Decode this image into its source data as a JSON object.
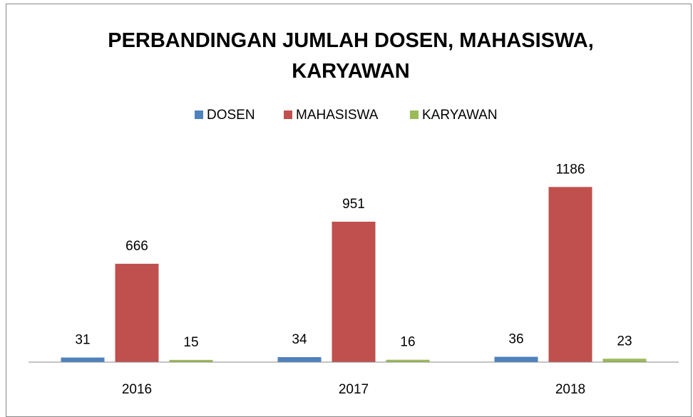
{
  "chart_data": {
    "type": "bar",
    "title": "PERBANDINGAN JUMLAH DOSEN, MAHASISWA, KARYAWAN",
    "categories": [
      "2016",
      "2017",
      "2018"
    ],
    "series": [
      {
        "name": "DOSEN",
        "color": "#4f81bd",
        "values": [
          31,
          34,
          36
        ]
      },
      {
        "name": "MAHASISWA",
        "color": "#c0504d",
        "values": [
          666,
          951,
          1186
        ]
      },
      {
        "name": "KARYAWAN",
        "color": "#9bbb59",
        "values": [
          15,
          16,
          23
        ]
      }
    ],
    "ylim": [
      0,
      1400
    ],
    "legend": "top"
  }
}
